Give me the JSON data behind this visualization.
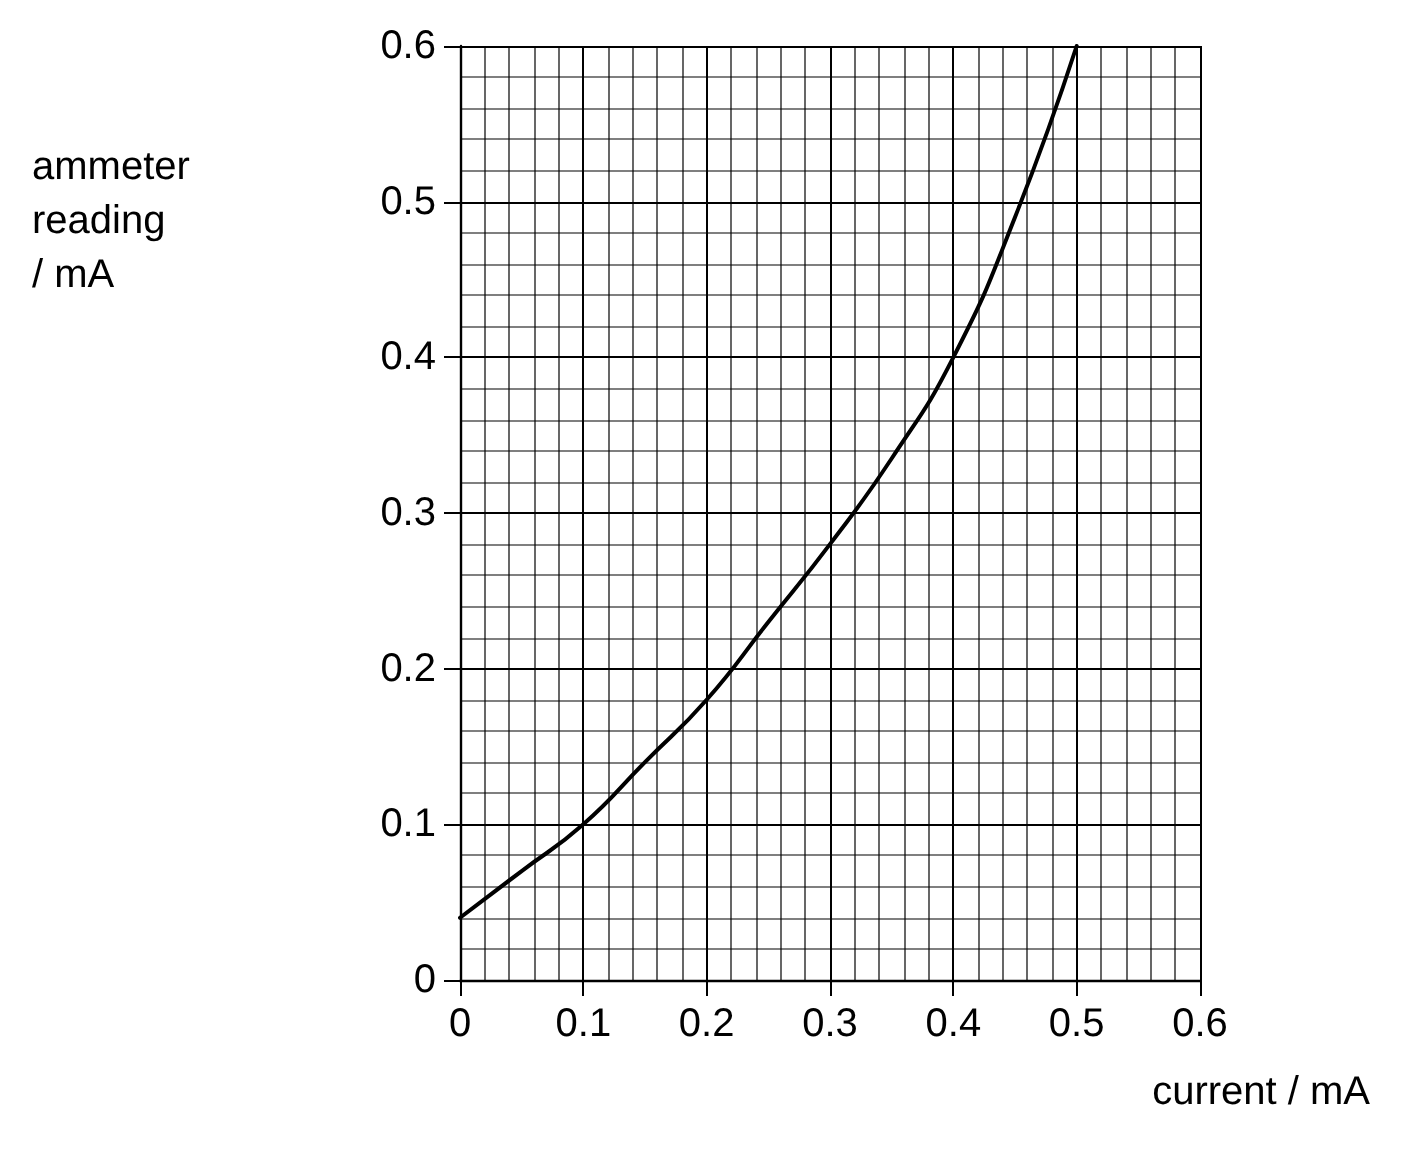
{
  "chart_data": {
    "type": "line",
    "xlabel": "current / mA",
    "ylabel": "ammeter\nreading\n/ mA",
    "x": [
      0,
      0.05,
      0.1,
      0.15,
      0.2,
      0.25,
      0.3,
      0.35,
      0.4,
      0.45,
      0.5
    ],
    "series": [
      {
        "color": "#000000",
        "values": [
          0.04,
          0.07,
          0.1,
          0.14,
          0.18,
          0.23,
          0.28,
          0.335,
          0.4,
          0.49,
          0.6
        ]
      }
    ],
    "xlim": [
      0,
      0.6
    ],
    "ylim": [
      0,
      0.6
    ],
    "xticks": [
      0,
      0.1,
      0.2,
      0.3,
      0.4,
      0.5,
      0.6
    ],
    "yticks": [
      0,
      0.1,
      0.2,
      0.3,
      0.4,
      0.5,
      0.6
    ],
    "grid": true,
    "marker": "none",
    "line_style": "solid"
  }
}
